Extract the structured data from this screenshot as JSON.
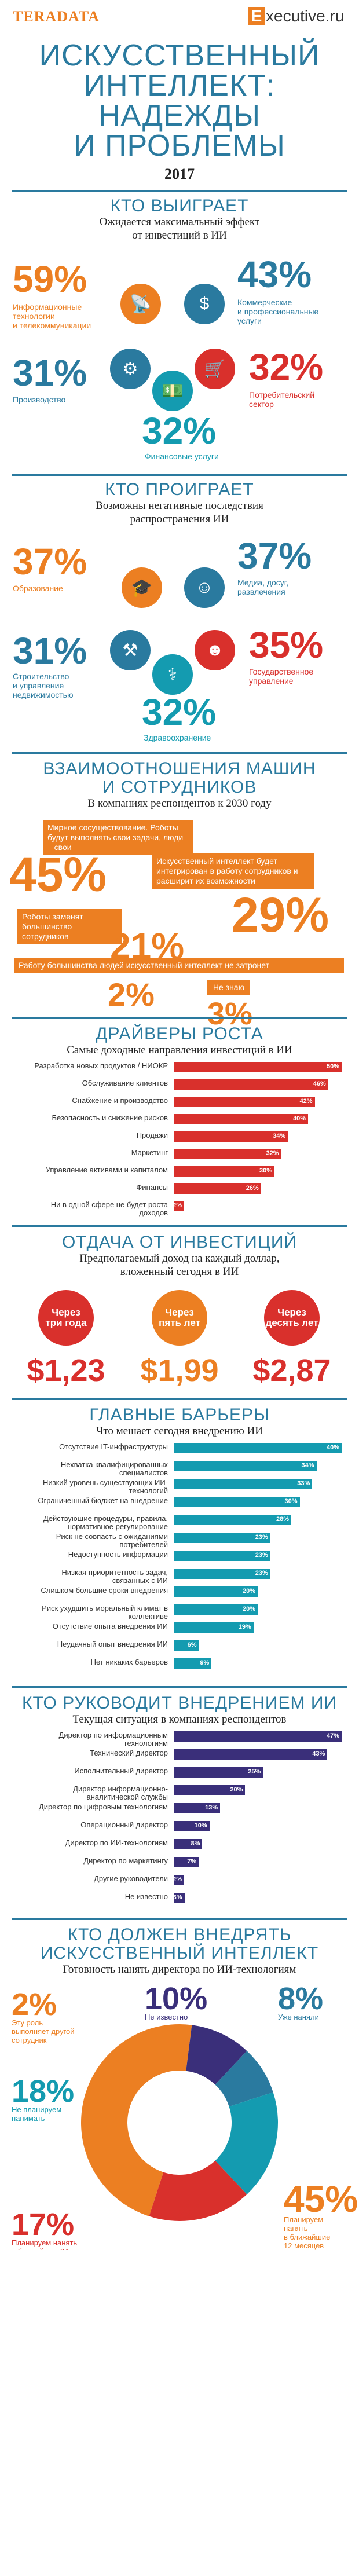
{
  "header": {
    "brand_left": "Teradata",
    "brand_right_e": "E",
    "brand_right": "xecutive.ru"
  },
  "title": {
    "line1": "ИСКУССТВЕННЫЙ",
    "line2": "ИНТЕЛЛЕКТ:",
    "line3": "НАДЕЖДЫ",
    "line4": "И ПРОБЛЕМЫ",
    "year": "2017"
  },
  "winners": {
    "title": "КТО ВЫИГРАЕТ",
    "subtitle1": "Ожидается максимальный эффект",
    "subtitle2": "от инвестиций в ИИ",
    "items": [
      {
        "value": "59%",
        "label1": "Информационные",
        "label2": "технологии",
        "label3": "и телекоммуникации"
      },
      {
        "value": "43%",
        "label1": "Коммерческие",
        "label2": "и профессиональные",
        "label3": "услуги"
      },
      {
        "value": "31%",
        "label1": "Производство",
        "label2": "",
        "label3": ""
      },
      {
        "value": "32%",
        "label1": "Потребительский",
        "label2": "сектор",
        "label3": ""
      },
      {
        "value": "32%",
        "label1": "Финансовые услуги",
        "label2": "",
        "label3": ""
      }
    ]
  },
  "losers": {
    "title": "КТО ПРОИГРАЕТ",
    "subtitle1": "Возможны негативные последствия",
    "subtitle2": "распространения ИИ",
    "items": [
      {
        "value": "37%",
        "label1": "Образование",
        "label2": "",
        "label3": ""
      },
      {
        "value": "37%",
        "label1": "Медиа, досуг,",
        "label2": "развлечения",
        "label3": ""
      },
      {
        "value": "31%",
        "label1": "Строительство",
        "label2": "и управление",
        "label3": "недвижимостью"
      },
      {
        "value": "35%",
        "label1": "Государственное",
        "label2": "управление",
        "label3": ""
      },
      {
        "value": "32%",
        "label1": "Здравоохранение",
        "label2": "",
        "label3": ""
      }
    ]
  },
  "relations": {
    "title1": "ВЗАИМООТНОШЕНИЯ МАШИН",
    "title2": "И СОТРУДНИКОВ",
    "subtitle": "В компаниях респондентов к 2030 году",
    "items": [
      {
        "value": "45%",
        "text": "Мирное сосуществование. Роботы будут выполнять свои задачи, люди – свои"
      },
      {
        "value": "29%",
        "text": "Искусственный интеллект будет интегрирован в работу сотрудников и расширит их возможности"
      },
      {
        "value": "21%",
        "text": "Роботы заменят большинство сотрудников"
      },
      {
        "value": "2%",
        "text": "Работу большинства людей искусственный интеллект не затронет"
      },
      {
        "value": "3%",
        "text": "Не знаю"
      }
    ]
  },
  "drivers": {
    "title": "ДРАЙВЕРЫ РОСТА",
    "subtitle": "Самые доходные направления инвестиций в ИИ",
    "colors": [
      "#d9302c",
      "#d9302c",
      "#d9302c",
      "#d9302c",
      "#d9302c",
      "#d9302c",
      "#d9302c",
      "#d9302c",
      "#d9302c"
    ]
  },
  "chart_data": [
    {
      "type": "bar",
      "title": "ДРАЙВЕРЫ РОСТА",
      "categories": [
        "Разработка новых продуктов / НИОКР",
        "Обслуживание клиентов",
        "Снабжение и производство",
        "Безопасность и снижение рисков",
        "Продажи",
        "Маркетинг",
        "Управление активами и капиталом",
        "Финансы",
        "Ни в одной сфере не будет роста доходов"
      ],
      "values": [
        50,
        46,
        42,
        40,
        34,
        32,
        30,
        26,
        2
      ],
      "value_labels": [
        "50%",
        "46%",
        "42%",
        "40%",
        "34%",
        "32%",
        "30%",
        "26%",
        "2%"
      ],
      "xlim": [
        0,
        50
      ]
    },
    {
      "type": "bar",
      "title": "ГЛАВНЫЕ БАРЬЕРЫ",
      "categories": [
        "Отсутствие IT-инфраструктуры",
        "Нехватка квалифицированных специалистов",
        "Низкий уровень существующих ИИ-технологий",
        "Ограниченный бюджет на внедрение",
        "Действующие процедуры, правила, нормативное регулирование",
        "Риск не совпасть с ожиданиями потребителей",
        "Недоступность информации",
        "Низкая приоритетность задач, связанных с ИИ",
        "Слишком большие сроки внедрения",
        "Риск ухудшить моральный климат в коллективе",
        "Отсутствие опыта внедрения ИИ",
        "Неудачный опыт внедрения ИИ",
        "Нет никаких барьеров"
      ],
      "values": [
        40,
        34,
        33,
        30,
        28,
        23,
        23,
        23,
        20,
        20,
        19,
        6,
        9
      ],
      "value_labels": [
        "40%",
        "34%",
        "33%",
        "30%",
        "28%",
        "23%",
        "23%",
        "23%",
        "20%",
        "20%",
        "19%",
        "6%",
        "9%"
      ],
      "xlim": [
        0,
        40
      ]
    },
    {
      "type": "bar",
      "title": "КТО РУКОВОДИТ ВНЕДРЕНИЕМ ИИ",
      "categories": [
        "Директор по информационным технологиям",
        "Технический директор",
        "Исполнительный директор",
        "Директор информационно-аналитической службы",
        "Директор по цифровым технологиям",
        "Операционный директор",
        "Директор по ИИ-технологиям",
        "Директор по маркетингу",
        "Другие руководители",
        "Не известно"
      ],
      "values": [
        47,
        43,
        25,
        20,
        13,
        10,
        8,
        7,
        2,
        3
      ],
      "value_labels": [
        "47%",
        "43%",
        "25%",
        "20%",
        "13%",
        "10%",
        "8%",
        "7%",
        "2%",
        "3%"
      ],
      "xlim": [
        0,
        47
      ]
    },
    {
      "type": "pie",
      "title": "КТО ДОЛЖЕН ВНЕДРЯТЬ ИСКУССТВЕННЫЙ ИНТЕЛЛЕКТ",
      "categories": [
        "Эту роль выполняет другой сотрудник",
        "Не известно",
        "Уже наняли",
        "Не планируем нанимать",
        "Планируем нанять в ближайшие 24 месяца",
        "Планируем нанять в ближайшие 12 месяцев"
      ],
      "values": [
        2,
        10,
        8,
        18,
        17,
        45
      ],
      "value_labels": [
        "2%",
        "10%",
        "8%",
        "18%",
        "17%",
        "45%"
      ],
      "colors": [
        "#ec7f22",
        "#3a2f7a",
        "#2a7a9f",
        "#149bb0",
        "#d9302c",
        "#ec7f22"
      ]
    }
  ],
  "return": {
    "title": "ОТДАЧА ОТ ИНВЕСТИЦИЙ",
    "subtitle1": "Предполагаемый доход на каждый доллар,",
    "subtitle2": "вложенный сегодня в ИИ",
    "items": [
      {
        "label1": "Через",
        "label2": "три года",
        "value": "$1,23",
        "color": "#d9302c"
      },
      {
        "label1": "Через",
        "label2": "пять лет",
        "value": "$1,99",
        "color": "#ec7f22"
      },
      {
        "label1": "Через",
        "label2": "десять лет",
        "value": "$2,87",
        "color": "#d9302c"
      }
    ]
  },
  "barriers": {
    "title": "ГЛАВНЫЕ БАРЬЕРЫ",
    "subtitle": "Что мешает сегодня внедрению ИИ",
    "color": "#149bb0"
  },
  "leaders": {
    "title": "КТО РУКОВОДИТ ВНЕДРЕНИЕМ ИИ",
    "subtitle": "Текущая ситуация в компаниях респондентов",
    "color": "#3a2f7a"
  },
  "implement": {
    "title1": "КТО ДОЛЖЕН ВНЕДРЯТЬ",
    "title2": "ИСКУССТВЕННЫЙ ИНТЕЛЛЕКТ",
    "subtitle": "Готовность нанять директора по ИИ-технологиям"
  }
}
